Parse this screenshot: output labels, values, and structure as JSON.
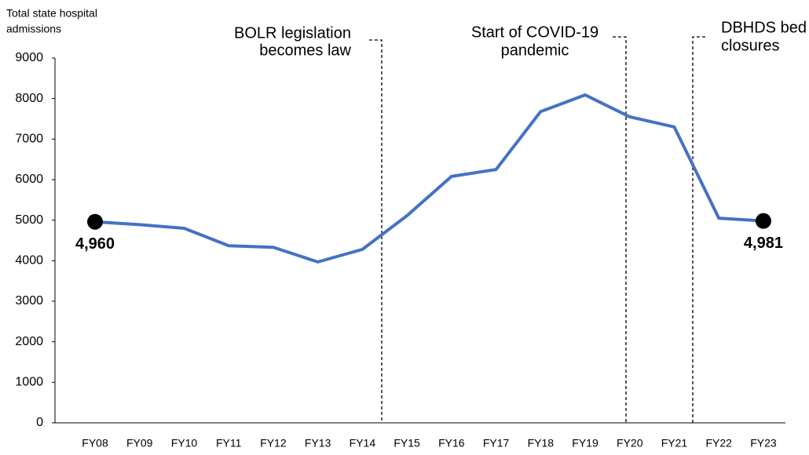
{
  "chart_data": {
    "type": "line",
    "y_label": [
      "Total state hospital",
      "admissions"
    ],
    "categories": [
      "FY08",
      "FY09",
      "FY10",
      "FY11",
      "FY12",
      "FY13",
      "FY14",
      "FY15",
      "FY16",
      "FY17",
      "FY18",
      "FY19",
      "FY20",
      "FY21",
      "FY22",
      "FY23"
    ],
    "series": [
      {
        "color": "#4472c4",
        "values": [
          4960,
          4890,
          4800,
          4370,
          4330,
          3970,
          4280,
          5110,
          6080,
          6250,
          7680,
          8090,
          7550,
          7300,
          5050,
          4981
        ],
        "value_labels": [
          "4,960",
          null,
          null,
          null,
          null,
          null,
          null,
          null,
          null,
          null,
          null,
          null,
          null,
          null,
          null,
          "4,981"
        ]
      }
    ],
    "ylim": [
      0,
      9000
    ],
    "yticks": [
      0,
      1000,
      2000,
      3000,
      4000,
      5000,
      6000,
      7000,
      8000,
      9000
    ],
    "annotations": [
      {
        "text": [
          "BOLR legislation",
          "becomes law"
        ]
      },
      {
        "text": [
          "Start of COVID-19",
          "pandemic"
        ]
      },
      {
        "text": [
          "DBHDS bed",
          "closures"
        ]
      }
    ]
  }
}
